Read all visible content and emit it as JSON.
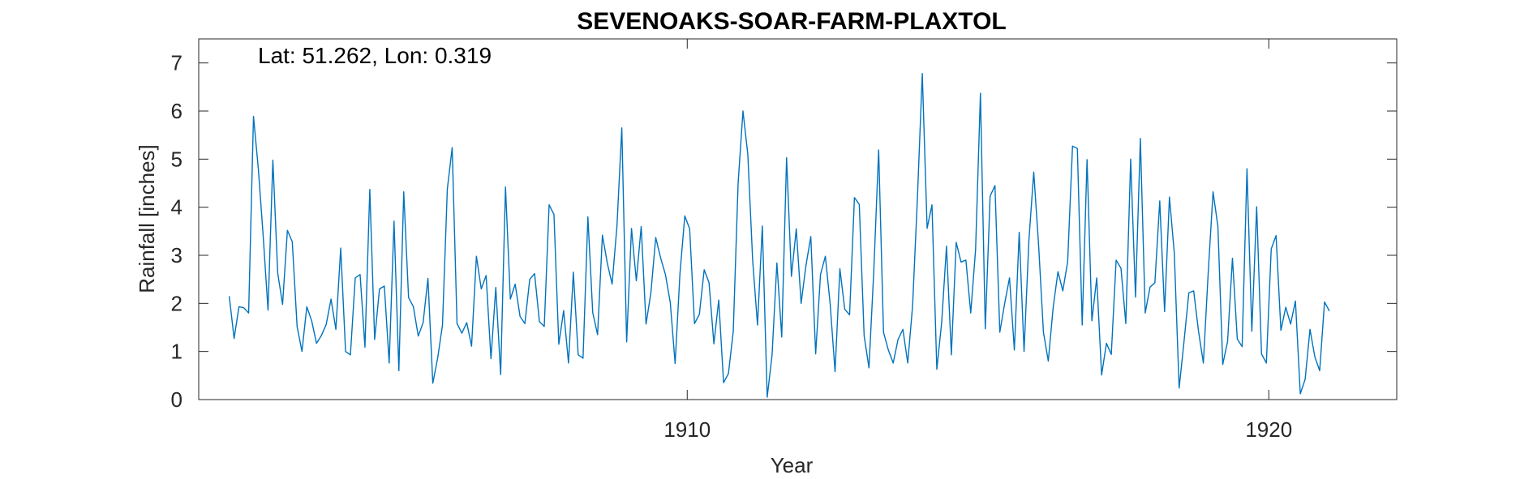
{
  "chart_data": {
    "type": "line",
    "title": "SEVENOAKS-SOAR-FARM-PLAXTOL",
    "annotation": "Lat: 51.262, Lon: 0.319",
    "xlabel": "Year",
    "ylabel": "Rainfall [inches]",
    "xlim": [
      1901.6,
      1922.2
    ],
    "ylim": [
      0,
      7.5
    ],
    "xticks": [
      1910,
      1920
    ],
    "yticks": [
      0,
      1,
      2,
      3,
      4,
      5,
      6,
      7
    ],
    "grid": false,
    "line_color": "#0072BD",
    "x_start": 1902.125,
    "x_step": 0.0833333,
    "series": [
      {
        "values": [
          2.15,
          1.27,
          1.93,
          1.91,
          1.8,
          5.89,
          4.8,
          3.4,
          1.86,
          4.98,
          2.63,
          1.98,
          3.52,
          3.28,
          1.52,
          1.0,
          1.93,
          1.64,
          1.17,
          1.33,
          1.56,
          2.09,
          1.46,
          3.15,
          1.0,
          0.93,
          2.53,
          2.6,
          1.09,
          4.37,
          1.25,
          2.3,
          2.36,
          0.76,
          3.71,
          0.6,
          4.32,
          2.12,
          1.93,
          1.32,
          1.6,
          2.52,
          0.34,
          0.86,
          1.55,
          4.38,
          5.24,
          1.58,
          1.38,
          1.6,
          1.11,
          2.98,
          2.3,
          2.58,
          0.85,
          2.33,
          0.52,
          4.42,
          2.09,
          2.4,
          1.73,
          1.58,
          2.5,
          2.62,
          1.62,
          1.52,
          4.05,
          3.85,
          1.15,
          1.85,
          0.76,
          2.65,
          0.93,
          0.86,
          3.8,
          1.81,
          1.35,
          3.42,
          2.84,
          2.4,
          3.61,
          5.65,
          1.2,
          3.56,
          2.47,
          3.6,
          1.57,
          2.22,
          3.37,
          2.95,
          2.6,
          2.02,
          0.75,
          2.62,
          3.82,
          3.55,
          1.58,
          1.77,
          2.7,
          2.43,
          1.16,
          2.07,
          0.35,
          0.54,
          1.42,
          4.5,
          6.0,
          5.1,
          2.9,
          1.55,
          3.61,
          0.05,
          0.92,
          2.84,
          1.3,
          5.03,
          2.56,
          3.55,
          2.0,
          2.79,
          3.39,
          0.95,
          2.6,
          2.98,
          1.98,
          0.58,
          2.72,
          1.88,
          1.76,
          4.2,
          4.06,
          1.33,
          0.66,
          2.69,
          5.19,
          1.4,
          1.03,
          0.76,
          1.25,
          1.46,
          0.76,
          1.95,
          4.2,
          6.78,
          3.56,
          4.05,
          0.63,
          1.6,
          3.19,
          0.93,
          3.27,
          2.86,
          2.9,
          1.8,
          3.12,
          6.37,
          1.47,
          4.23,
          4.45,
          1.4,
          2.0,
          2.53,
          1.03,
          3.48,
          1.0,
          3.31,
          4.73,
          3.22,
          1.4,
          0.8,
          1.91,
          2.66,
          2.26,
          2.87,
          5.27,
          5.22,
          1.55,
          4.99,
          1.64,
          2.53,
          0.51,
          1.17,
          0.94,
          2.9,
          2.73,
          1.58,
          5.0,
          2.13,
          5.43,
          1.8,
          2.34,
          2.43,
          4.13,
          1.83,
          4.21,
          3.05,
          0.24,
          1.2,
          2.22,
          2.26,
          1.42,
          0.76,
          2.64,
          4.32,
          3.6,
          0.73,
          1.21,
          2.94,
          1.26,
          1.1,
          4.8,
          1.42,
          4.01,
          0.95,
          0.76,
          3.13,
          3.41,
          1.44,
          1.92,
          1.57,
          2.05,
          0.12,
          0.42,
          1.46,
          0.89,
          0.6,
          2.03,
          1.84
        ]
      }
    ]
  }
}
